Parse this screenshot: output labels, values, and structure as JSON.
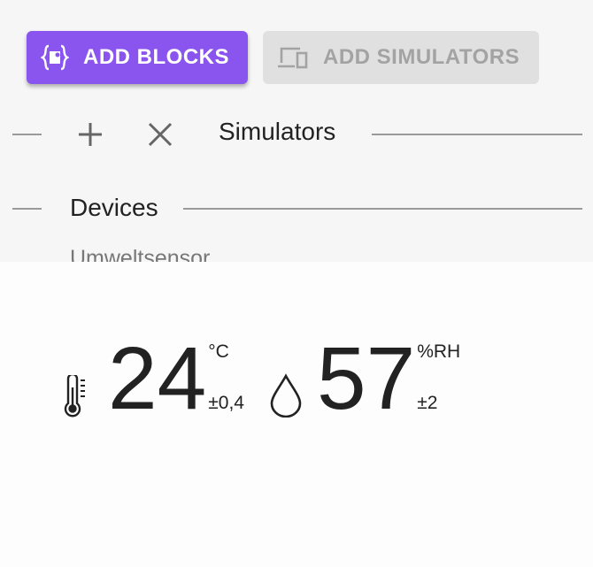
{
  "toolbar": {
    "add_blocks_label": "ADD BLOCKS",
    "add_blocks_icon": "code-braces-puzzle-icon",
    "add_simulators_label": "ADD SIMULATORS",
    "add_simulators_icon": "devices-icon",
    "accent_color": "#8a55ee"
  },
  "simulators": {
    "title": "Simulators",
    "add_icon": "plus-icon",
    "clear_icon": "close-icon"
  },
  "devices": {
    "title": "Devices",
    "items": [
      {
        "name": "Umweltsensor",
        "temperature": {
          "value": "24",
          "unit": "°C",
          "accuracy": "±0,4",
          "icon": "thermometer-icon"
        },
        "humidity": {
          "value": "57",
          "unit": "%RH",
          "accuracy": "±2",
          "icon": "water-drop-icon"
        }
      }
    ]
  }
}
